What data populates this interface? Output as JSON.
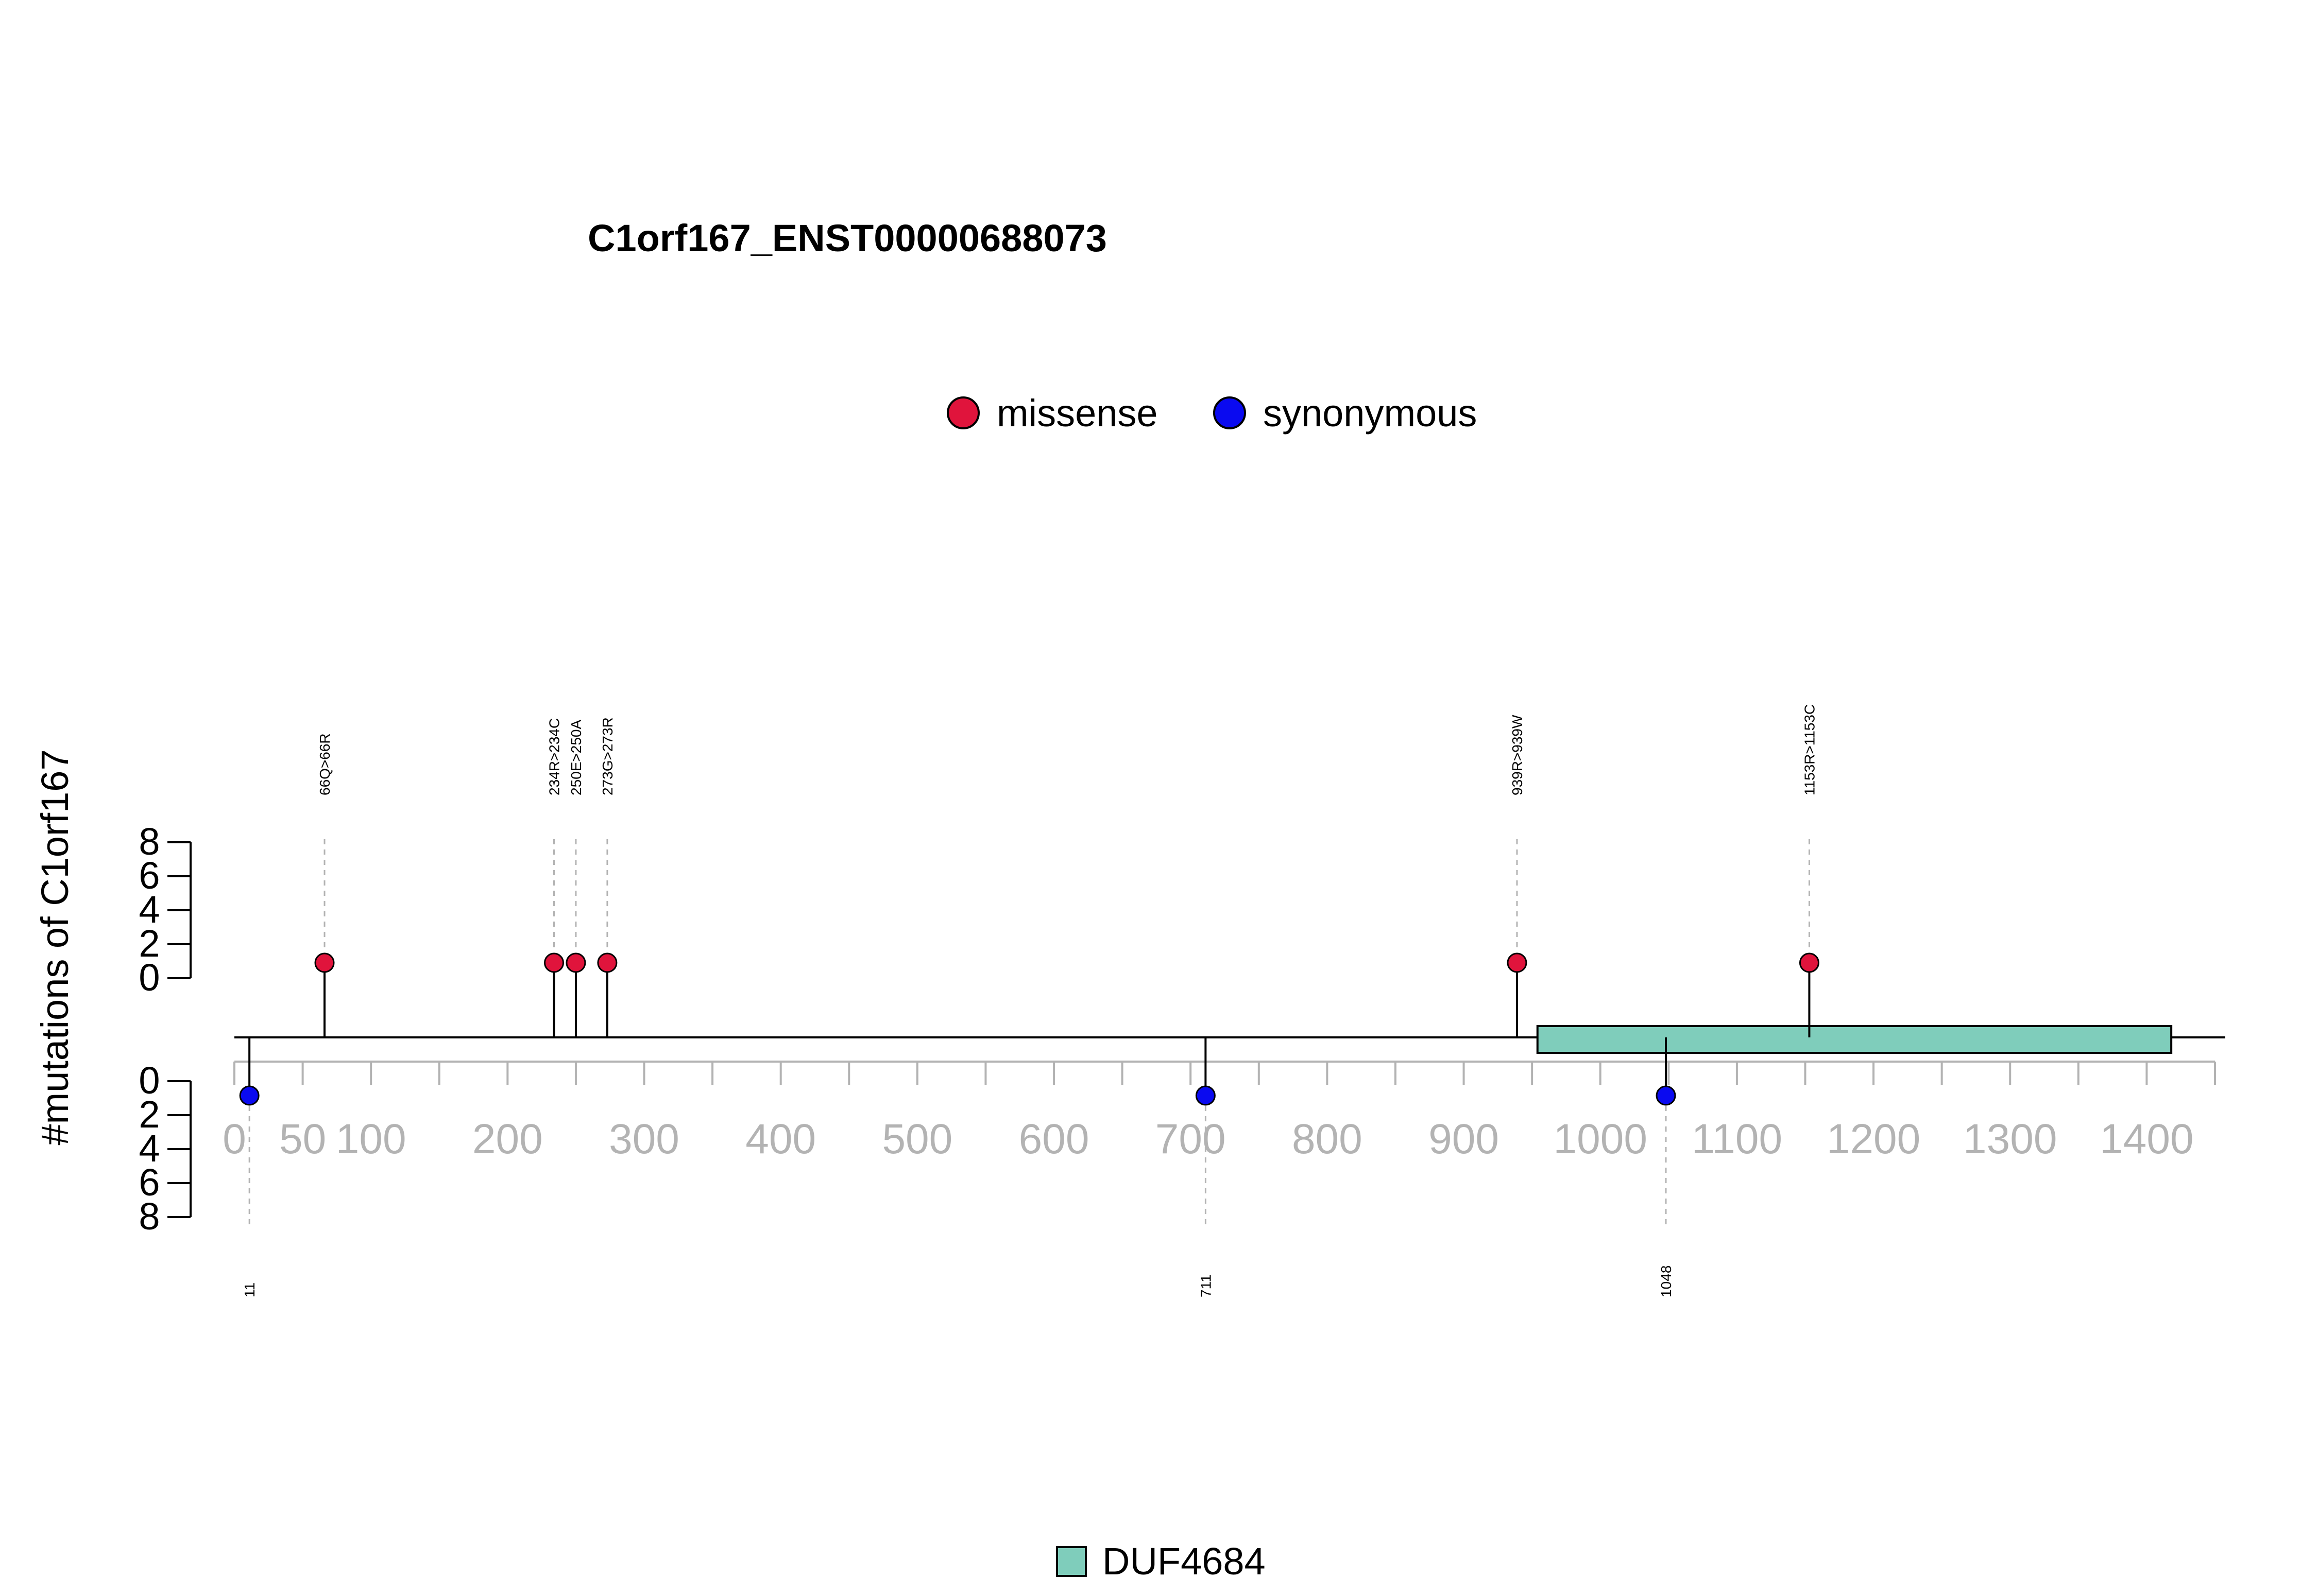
{
  "chart_data": {
    "type": "lollipop",
    "title": "C1orf167_ENST00000688073",
    "ylabel": "#mutations of C1orf167",
    "xlim": [
      0,
      1450
    ],
    "x_ticks": [
      0,
      50,
      100,
      150,
      200,
      250,
      300,
      350,
      400,
      450,
      500,
      550,
      600,
      650,
      700,
      750,
      800,
      850,
      900,
      950,
      1000,
      1050,
      1100,
      1150,
      1200,
      1250,
      1300,
      1350,
      1400,
      1450
    ],
    "x_tick_labels": [
      {
        "value": 0,
        "label": "0"
      },
      {
        "value": 50,
        "label": "50"
      },
      {
        "value": 100,
        "label": "100"
      },
      {
        "value": 200,
        "label": "200"
      },
      {
        "value": 300,
        "label": "300"
      },
      {
        "value": 400,
        "label": "400"
      },
      {
        "value": 500,
        "label": "500"
      },
      {
        "value": 600,
        "label": "600"
      },
      {
        "value": 700,
        "label": "700"
      },
      {
        "value": 800,
        "label": "800"
      },
      {
        "value": 900,
        "label": "900"
      },
      {
        "value": 1000,
        "label": "1000"
      },
      {
        "value": 1100,
        "label": "1100"
      },
      {
        "value": 1200,
        "label": "1200"
      },
      {
        "value": 1300,
        "label": "1300"
      },
      {
        "value": 1400,
        "label": "1400"
      }
    ],
    "y_ticks_top": [
      "0",
      "2",
      "4",
      "6",
      "8"
    ],
    "y_ticks_bottom": [
      "0",
      "2",
      "4",
      "6",
      "8"
    ],
    "legend": [
      {
        "name": "missense",
        "color": "#e0143c"
      },
      {
        "name": "synonymous",
        "color": "#0a0af0"
      }
    ],
    "mutations_above": [
      {
        "position": 66,
        "count": 1,
        "label": "66Q>66R",
        "type": "missense"
      },
      {
        "position": 234,
        "count": 1,
        "label": "234R>234C",
        "type": "missense"
      },
      {
        "position": 250,
        "count": 1,
        "label": "250E>250A",
        "type": "missense"
      },
      {
        "position": 273,
        "count": 1,
        "label": "273G>273R",
        "type": "missense"
      },
      {
        "position": 939,
        "count": 1,
        "label": "939R>939W",
        "type": "missense"
      },
      {
        "position": 1153,
        "count": 1,
        "label": "1153R>1153C",
        "type": "missense"
      }
    ],
    "mutations_below": [
      {
        "position": 11,
        "count": 1,
        "label": "11",
        "type": "synonymous"
      },
      {
        "position": 711,
        "count": 1,
        "label": "711",
        "type": "synonymous"
      },
      {
        "position": 1048,
        "count": 1,
        "label": "1048",
        "type": "synonymous"
      }
    ],
    "domains": [
      {
        "name": "DUF4684",
        "start": 954,
        "end": 1418,
        "color": "#7fcdbb"
      }
    ]
  }
}
